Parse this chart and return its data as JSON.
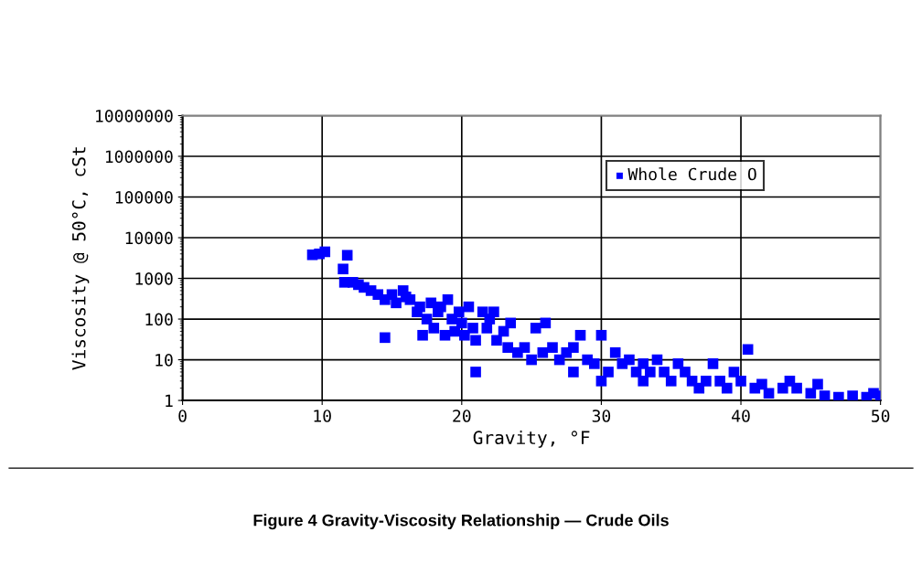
{
  "chart_data": {
    "type": "scatter",
    "xlabel": "Gravity, °F",
    "ylabel": "Viscosity @ 50°C, cSt",
    "annotations": [
      "Figure 4 Gravity-Viscosity Relationship — Crude Oils"
    ],
    "series": [
      {
        "name": "Whole Crude O",
        "color": "#0000ff",
        "x": [
          9.3,
          9.8,
          10.2,
          11.5,
          11.8,
          11.6,
          12.2,
          12.6,
          13.0,
          13.5,
          14.0,
          14.5,
          14.5,
          15.0,
          15.3,
          15.8,
          16.0,
          16.3,
          16.8,
          17.0,
          17.2,
          17.5,
          17.8,
          18.0,
          18.3,
          18.5,
          18.8,
          19.0,
          19.3,
          19.5,
          19.8,
          20.0,
          20.2,
          20.5,
          20.8,
          21.0,
          21.0,
          21.5,
          21.8,
          22.0,
          22.3,
          22.5,
          23.0,
          23.3,
          23.5,
          24.0,
          24.5,
          25.0,
          25.3,
          25.8,
          26.0,
          26.5,
          27.0,
          27.5,
          28.0,
          28.0,
          28.5,
          29.0,
          29.5,
          30.0,
          30.0,
          30.5,
          31.0,
          31.5,
          32.0,
          32.5,
          33.0,
          33.0,
          33.5,
          34.0,
          34.5,
          35.0,
          35.5,
          36.0,
          36.5,
          37.0,
          37.5,
          38.0,
          38.5,
          39.0,
          39.5,
          40.0,
          40.5,
          41.0,
          41.5,
          42.0,
          43.0,
          43.5,
          44.0,
          45.0,
          45.5,
          46.0,
          47.0,
          48.0,
          49.0,
          49.5,
          50.0
        ],
        "values": [
          3800,
          4000,
          4500,
          1700,
          3700,
          800,
          800,
          700,
          600,
          500,
          400,
          35,
          300,
          400,
          250,
          500,
          350,
          300,
          150,
          200,
          40,
          100,
          250,
          60,
          150,
          200,
          40,
          300,
          100,
          50,
          150,
          80,
          40,
          200,
          60,
          5,
          30,
          150,
          60,
          100,
          150,
          30,
          50,
          20,
          80,
          15,
          20,
          10,
          60,
          15,
          80,
          20,
          10,
          15,
          20,
          5,
          40,
          10,
          8,
          3,
          40,
          5,
          15,
          8,
          10,
          5,
          3,
          8,
          5,
          10,
          5,
          3,
          8,
          5,
          3,
          2,
          3,
          8,
          3,
          2,
          5,
          3,
          18,
          2,
          2.5,
          1.5,
          2,
          3,
          2,
          1.5,
          2.5,
          1.3,
          1.2,
          1.3,
          1.2,
          1.5,
          1.3
        ]
      }
    ],
    "marker": "square",
    "xlim": [
      0,
      50
    ],
    "xticks": [
      0,
      10,
      20,
      30,
      40,
      50
    ],
    "ylim": [
      1,
      10000000
    ],
    "yticks": [
      1,
      10,
      100,
      1000,
      10000,
      100000,
      1000000,
      10000000
    ],
    "log": "y",
    "grid": true,
    "legend": "top"
  }
}
